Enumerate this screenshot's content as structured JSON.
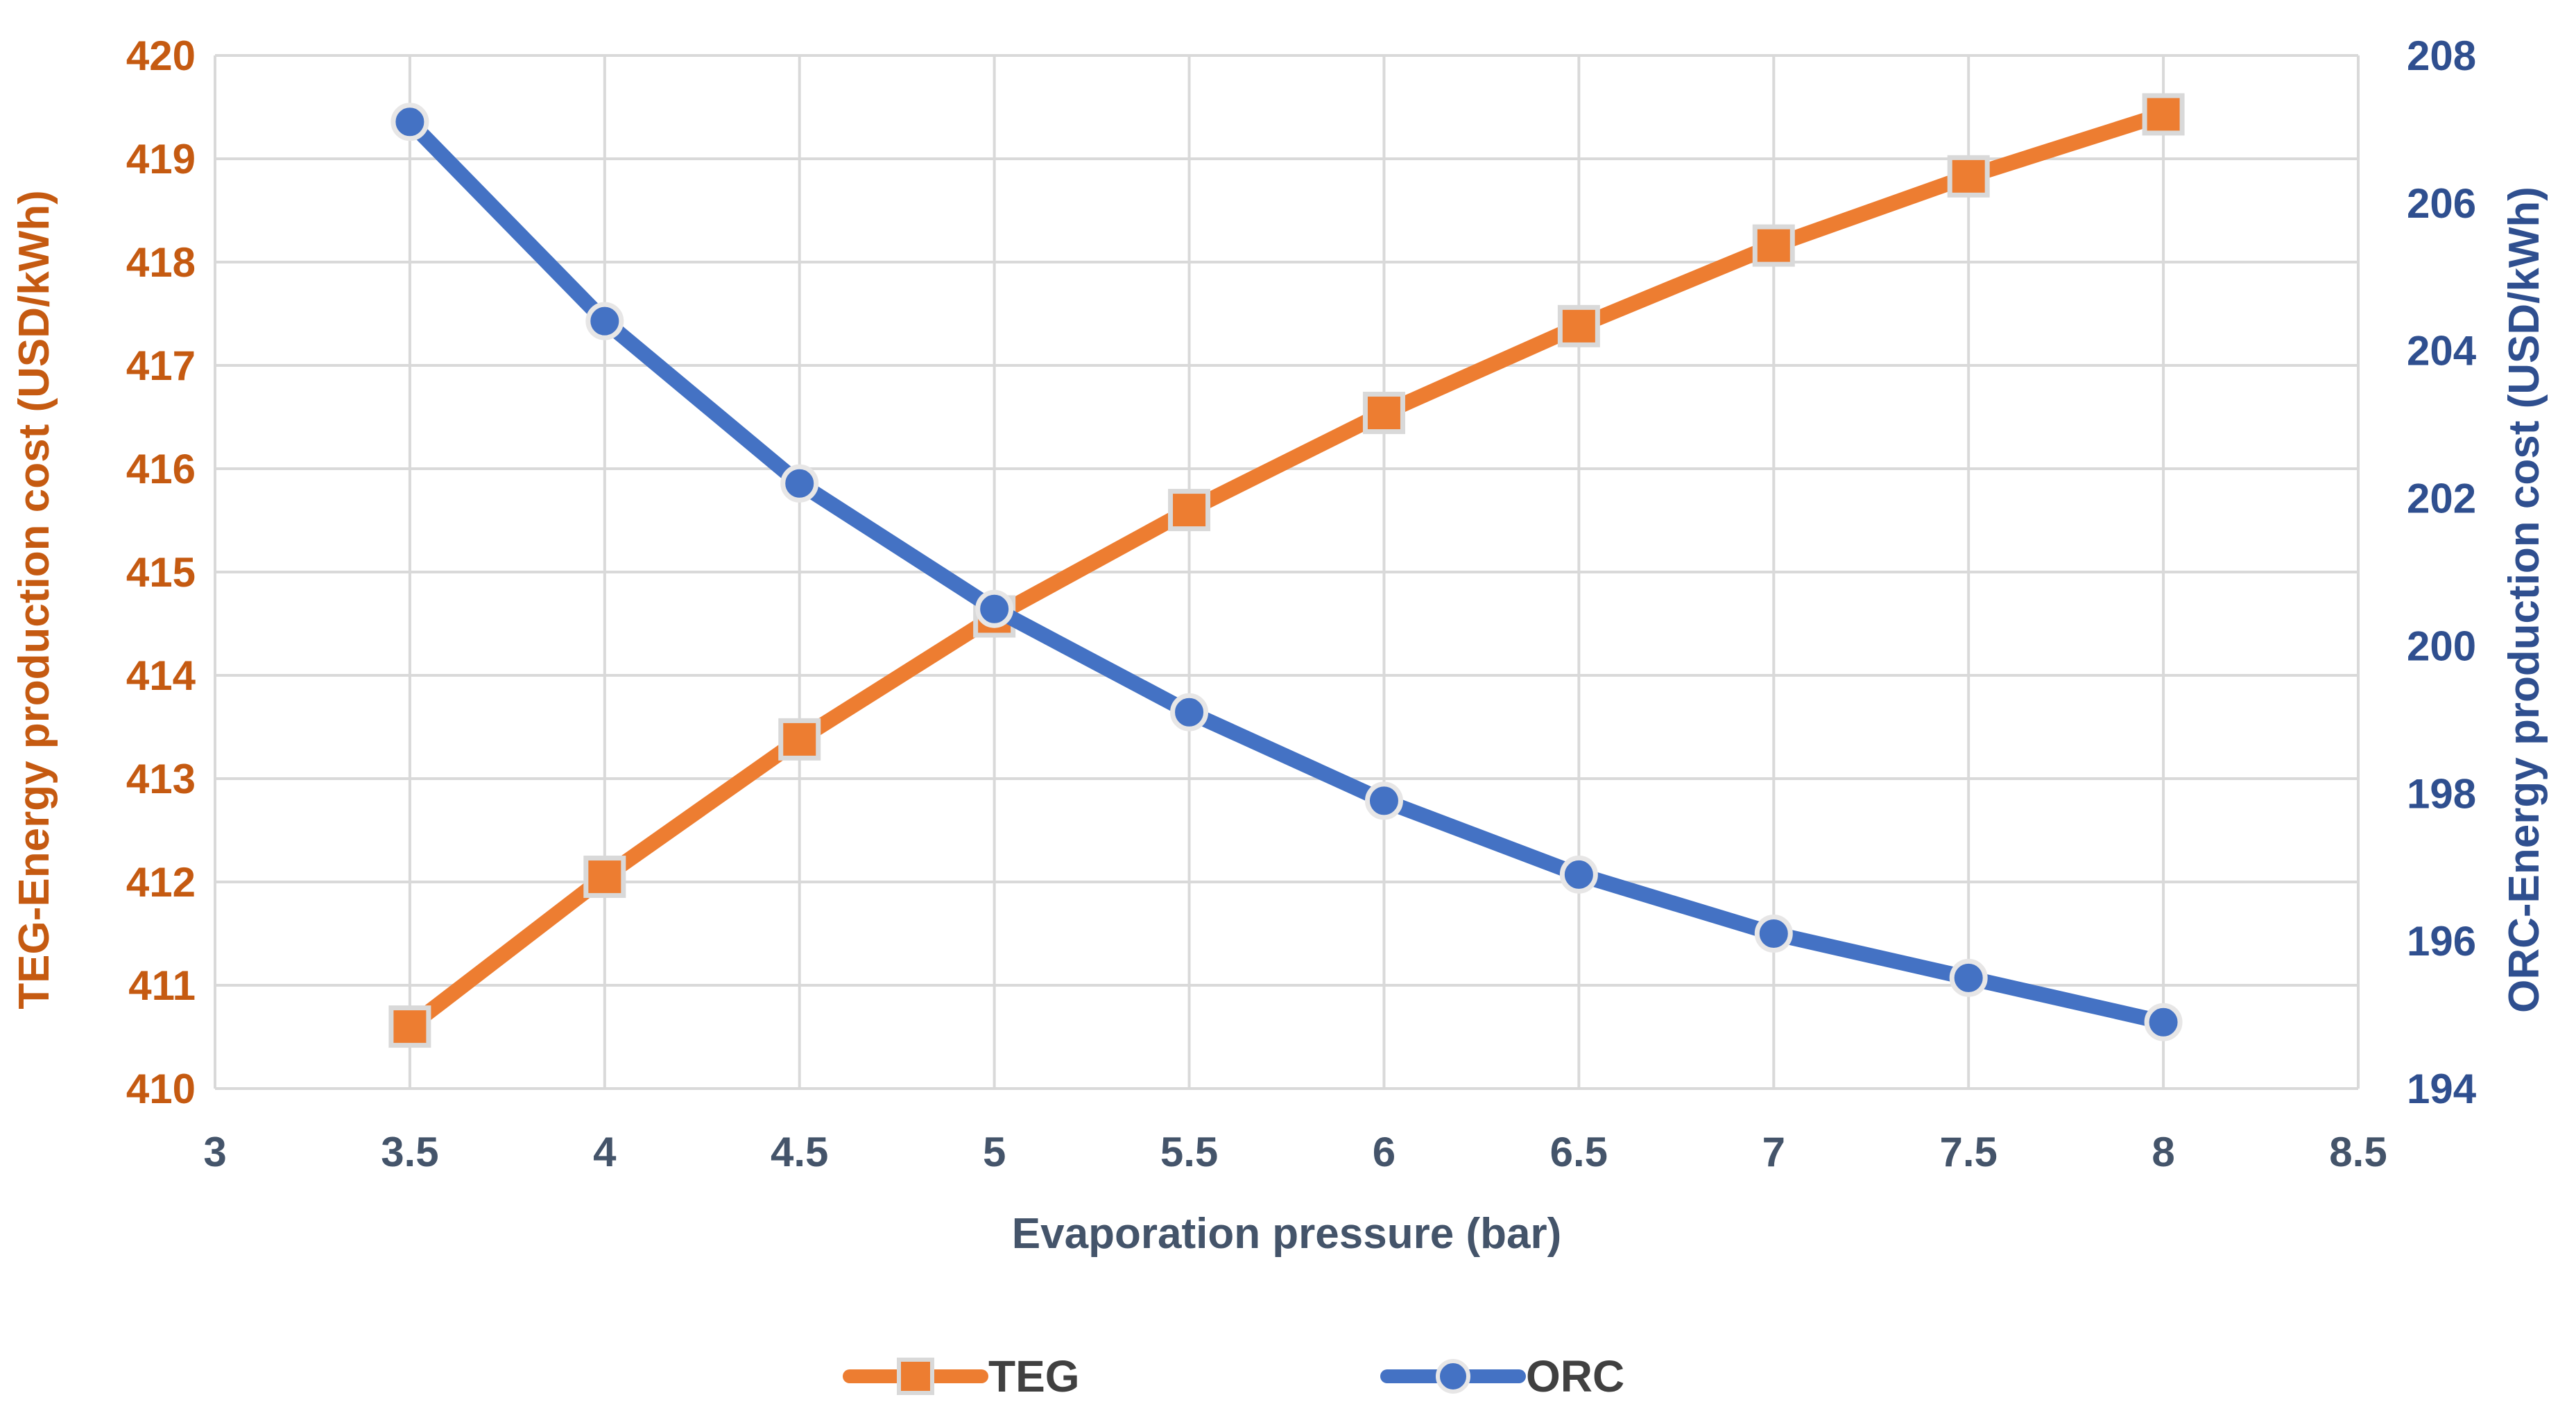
{
  "chart_data": {
    "type": "line",
    "title": "",
    "xlabel": "Evaporation pressure (bar)",
    "ylabel_left": "TEG-Energy production cost (USD/kWh)",
    "ylabel_right": "ORC-Energy production cost (USD/kWh)",
    "xlim": [
      3,
      8.5
    ],
    "ylim_left": [
      410,
      420
    ],
    "ylim_right": [
      194,
      208
    ],
    "x_ticks": [
      "3",
      "3.5",
      "4",
      "4.5",
      "5",
      "5.5",
      "6",
      "6.5",
      "7",
      "7.5",
      "8",
      "8.5"
    ],
    "y_left_ticks": [
      "410",
      "411",
      "412",
      "413",
      "414",
      "415",
      "416",
      "417",
      "418",
      "419",
      "420"
    ],
    "y_right_ticks": [
      "194",
      "196",
      "198",
      "200",
      "202",
      "204",
      "206",
      "208"
    ],
    "grid": true,
    "legend_position": "bottom",
    "x": [
      3.5,
      4,
      4.5,
      5,
      5.5,
      6,
      6.5,
      7,
      7.5,
      8
    ],
    "series": [
      {
        "name": "TEG",
        "axis": "left",
        "marker": "square",
        "color": "#ED7D31",
        "values": [
          410.6,
          412.05,
          413.38,
          414.57,
          415.6,
          416.54,
          417.38,
          418.16,
          418.83,
          419.43
        ]
      },
      {
        "name": "ORC",
        "axis": "right",
        "marker": "circle",
        "color": "#4472C4",
        "values": [
          207.1,
          204.4,
          202.2,
          200.5,
          199.1,
          197.9,
          196.9,
          196.1,
          195.5,
          194.9
        ]
      }
    ],
    "colors": {
      "left_axis_text": "#C55A11",
      "right_axis_text": "#2F4F8F",
      "x_axis_text": "#44546A",
      "grid": "#D9D9D9"
    }
  }
}
